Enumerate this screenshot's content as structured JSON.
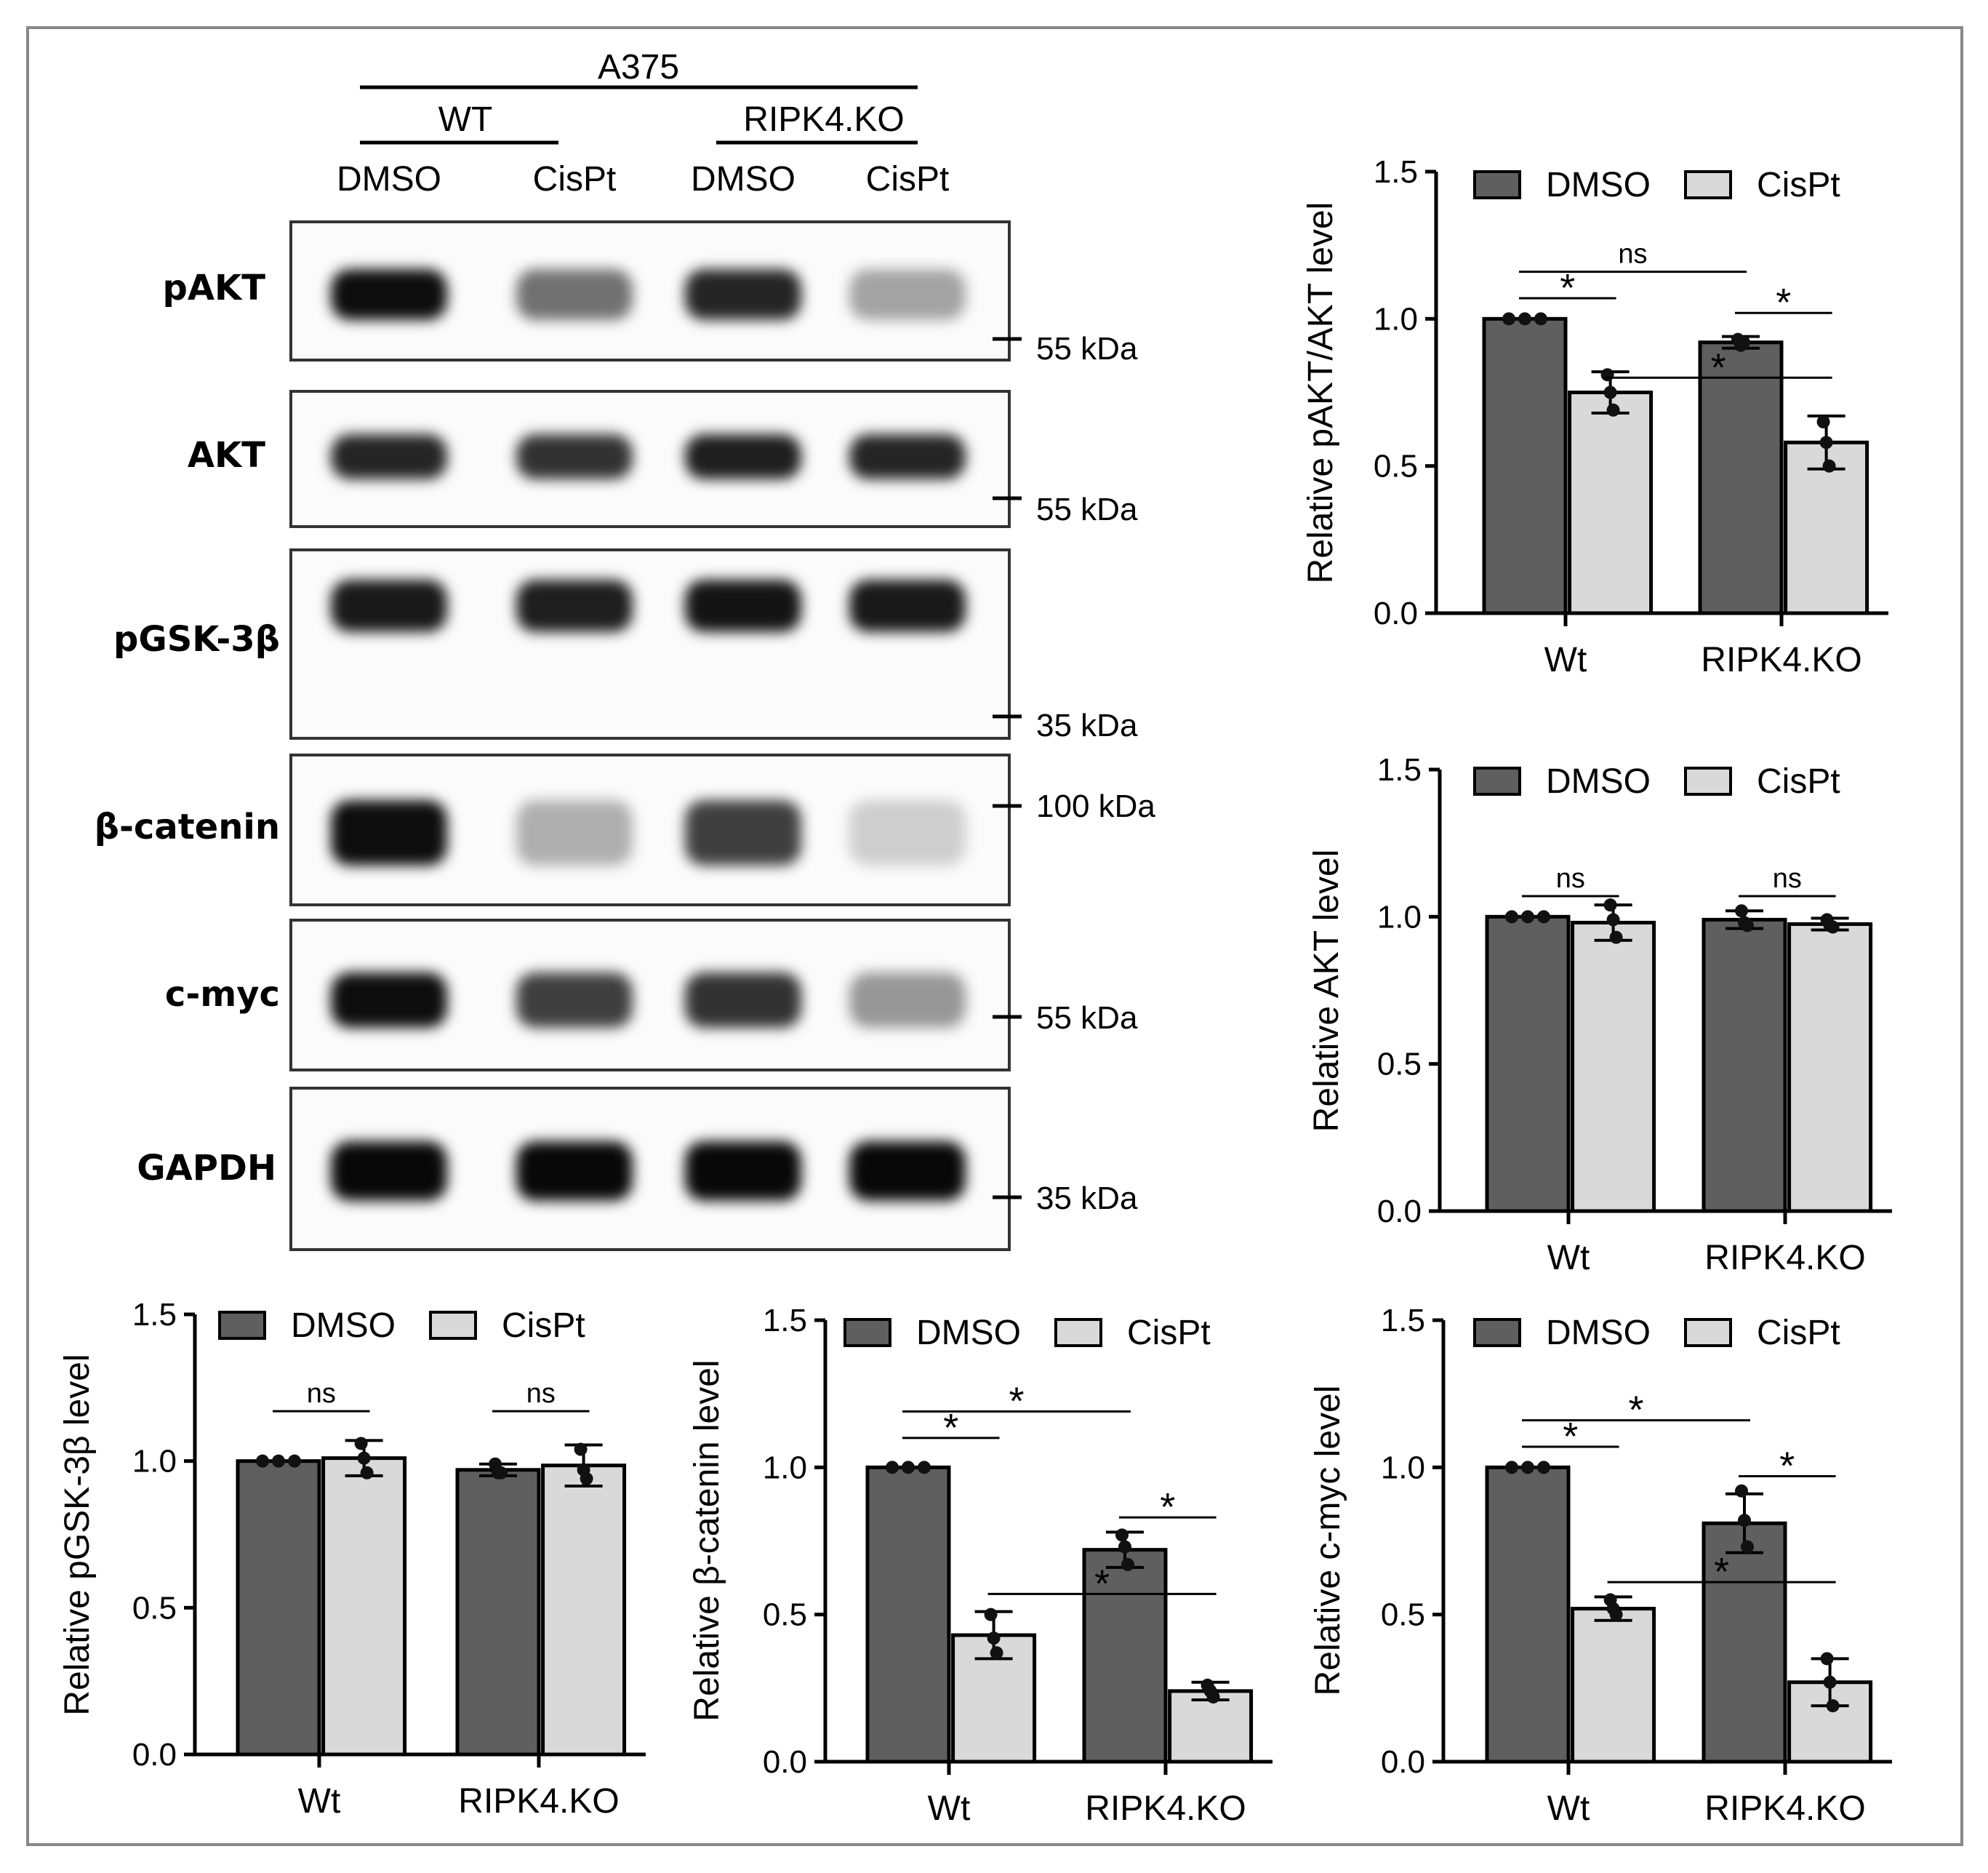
{
  "figure": {
    "cell_line": "A375",
    "groups": [
      "WT",
      "RIPK4.KO"
    ],
    "lanes": [
      "DMSO",
      "CisPt",
      "DMSO",
      "CisPt"
    ],
    "blots": [
      {
        "label": "pAKT",
        "markers": [
          "55 kDa"
        ],
        "bands": [
          0.95,
          0.55,
          0.85,
          0.35
        ]
      },
      {
        "label": "AKT",
        "markers": [
          "55 kDa"
        ],
        "bands": [
          0.85,
          0.8,
          0.88,
          0.85
        ]
      },
      {
        "label": "pGSK-3β",
        "markers": [
          "35 kDa"
        ],
        "bands": [
          0.9,
          0.88,
          0.92,
          0.9
        ]
      },
      {
        "label": "β-catenin",
        "markers": [
          "100 kDa"
        ],
        "bands": [
          0.95,
          0.3,
          0.75,
          0.18
        ]
      },
      {
        "label": "c-myc",
        "markers": [
          "55 kDa"
        ],
        "bands": [
          0.95,
          0.75,
          0.8,
          0.4
        ]
      },
      {
        "label": "GAPDH",
        "markers": [
          "35 kDa"
        ],
        "bands": [
          0.97,
          0.97,
          0.97,
          0.97
        ]
      }
    ]
  },
  "chart_data": [
    {
      "type": "bar",
      "ylabel": "Relative pAKT/AKT level",
      "categories": [
        "Wt",
        "RIPK4.KO"
      ],
      "series": [
        {
          "name": "DMSO",
          "values": [
            1.0,
            0.92
          ],
          "errors": [
            0.0,
            0.02
          ],
          "points": [
            [
              1.0,
              1.0,
              1.0
            ],
            [
              0.93,
              0.91,
              0.92
            ]
          ]
        },
        {
          "name": "CisPt",
          "values": [
            0.75,
            0.58
          ],
          "errors": [
            0.07,
            0.09
          ],
          "points": [
            [
              0.81,
              0.75,
              0.69
            ],
            [
              0.65,
              0.58,
              0.5
            ]
          ]
        }
      ],
      "ylim": [
        0,
        1.5
      ],
      "yticks": [
        "0.0",
        "0.5",
        "1.0",
        "1.5"
      ],
      "legend": "top",
      "annotations": [
        {
          "text": "*",
          "from": [
            0,
            0
          ],
          "to": [
            0,
            1
          ],
          "y": 1.07
        },
        {
          "text": "ns",
          "from": [
            0,
            0
          ],
          "to": [
            1,
            0
          ],
          "y": 1.16
        },
        {
          "text": "*",
          "from": [
            1,
            0
          ],
          "to": [
            1,
            1
          ],
          "y": 1.02
        },
        {
          "text": "*",
          "from": [
            0,
            1
          ],
          "to": [
            1,
            1
          ],
          "y": 0.8
        }
      ]
    },
    {
      "type": "bar",
      "ylabel": "Relative AKT level",
      "categories": [
        "Wt",
        "RIPK4.KO"
      ],
      "series": [
        {
          "name": "DMSO",
          "values": [
            1.0,
            0.99
          ],
          "errors": [
            0.0,
            0.03
          ],
          "points": [
            [
              1.0,
              1.0,
              1.0
            ],
            [
              1.02,
              0.98,
              0.97
            ]
          ]
        },
        {
          "name": "CisPt",
          "values": [
            0.98,
            0.975
          ],
          "errors": [
            0.06,
            0.02
          ],
          "points": [
            [
              1.04,
              0.99,
              0.93
            ],
            [
              0.99,
              0.97,
              0.965
            ]
          ]
        }
      ],
      "ylim": [
        0,
        1.5
      ],
      "yticks": [
        "0.0",
        "0.5",
        "1.0",
        "1.5"
      ],
      "legend": "top",
      "annotations": [
        {
          "text": "ns",
          "from": [
            0,
            0
          ],
          "to": [
            0,
            1
          ],
          "y": 1.07
        },
        {
          "text": "ns",
          "from": [
            1,
            0
          ],
          "to": [
            1,
            1
          ],
          "y": 1.07
        }
      ]
    },
    {
      "type": "bar",
      "ylabel": "Relative pGSK-3β level",
      "categories": [
        "Wt",
        "RIPK4.KO"
      ],
      "series": [
        {
          "name": "DMSO",
          "values": [
            1.0,
            0.97
          ],
          "errors": [
            0.0,
            0.02
          ],
          "points": [
            [
              1.0,
              1.0,
              1.0
            ],
            [
              0.99,
              0.96,
              0.96
            ]
          ]
        },
        {
          "name": "CisPt",
          "values": [
            1.01,
            0.985
          ],
          "errors": [
            0.06,
            0.07
          ],
          "points": [
            [
              1.06,
              1.01,
              0.96
            ],
            [
              1.04,
              0.97,
              0.94
            ]
          ]
        }
      ],
      "ylim": [
        0,
        1.5
      ],
      "yticks": [
        "0.0",
        "0.5",
        "1.0",
        "1.5"
      ],
      "legend": "top",
      "annotations": [
        {
          "text": "ns",
          "from": [
            0,
            0
          ],
          "to": [
            0,
            1
          ],
          "y": 1.17
        },
        {
          "text": "ns",
          "from": [
            1,
            0
          ],
          "to": [
            1,
            1
          ],
          "y": 1.17
        }
      ]
    },
    {
      "type": "bar",
      "ylabel": "Relative β-catenin level",
      "categories": [
        "Wt",
        "RIPK4.KO"
      ],
      "series": [
        {
          "name": "DMSO",
          "values": [
            1.0,
            0.72
          ],
          "errors": [
            0.0,
            0.06
          ],
          "points": [
            [
              1.0,
              1.0,
              1.0
            ],
            [
              0.77,
              0.73,
              0.67
            ]
          ]
        },
        {
          "name": "CisPt",
          "values": [
            0.43,
            0.24
          ],
          "errors": [
            0.08,
            0.03
          ],
          "points": [
            [
              0.5,
              0.42,
              0.37
            ],
            [
              0.26,
              0.24,
              0.22
            ]
          ]
        }
      ],
      "ylim": [
        0,
        1.5
      ],
      "yticks": [
        "0.0",
        "0.5",
        "1.0",
        "1.5"
      ],
      "legend": "top",
      "annotations": [
        {
          "text": "*",
          "from": [
            0,
            0
          ],
          "to": [
            0,
            1
          ],
          "y": 1.1
        },
        {
          "text": "*",
          "from": [
            0,
            0
          ],
          "to": [
            1,
            0
          ],
          "y": 1.19
        },
        {
          "text": "*",
          "from": [
            1,
            0
          ],
          "to": [
            1,
            1
          ],
          "y": 0.83
        },
        {
          "text": "*",
          "from": [
            0,
            1
          ],
          "to": [
            1,
            1
          ],
          "y": 0.57
        }
      ]
    },
    {
      "type": "bar",
      "ylabel": "Relative c-myc level",
      "categories": [
        "Wt",
        "RIPK4.KO"
      ],
      "series": [
        {
          "name": "DMSO",
          "values": [
            1.0,
            0.81
          ],
          "errors": [
            0.0,
            0.1
          ],
          "points": [
            [
              1.0,
              1.0,
              1.0
            ],
            [
              0.92,
              0.82,
              0.73
            ]
          ]
        },
        {
          "name": "CisPt",
          "values": [
            0.52,
            0.27
          ],
          "errors": [
            0.04,
            0.08
          ],
          "points": [
            [
              0.55,
              0.52,
              0.5
            ],
            [
              0.35,
              0.27,
              0.19
            ]
          ]
        }
      ],
      "ylim": [
        0,
        1.5
      ],
      "yticks": [
        "0.0",
        "0.5",
        "1.0",
        "1.5"
      ],
      "legend": "top",
      "annotations": [
        {
          "text": "*",
          "from": [
            0,
            0
          ],
          "to": [
            0,
            1
          ],
          "y": 1.07
        },
        {
          "text": "*",
          "from": [
            0,
            0
          ],
          "to": [
            1,
            0
          ],
          "y": 1.16
        },
        {
          "text": "*",
          "from": [
            1,
            0
          ],
          "to": [
            1,
            1
          ],
          "y": 0.97
        },
        {
          "text": "*",
          "from": [
            0,
            1
          ],
          "to": [
            1,
            1
          ],
          "y": 0.61
        }
      ]
    }
  ],
  "colors": {
    "dmso": "#5f5f5f",
    "cispt": "#d9d9d9",
    "axis": "#000000"
  }
}
